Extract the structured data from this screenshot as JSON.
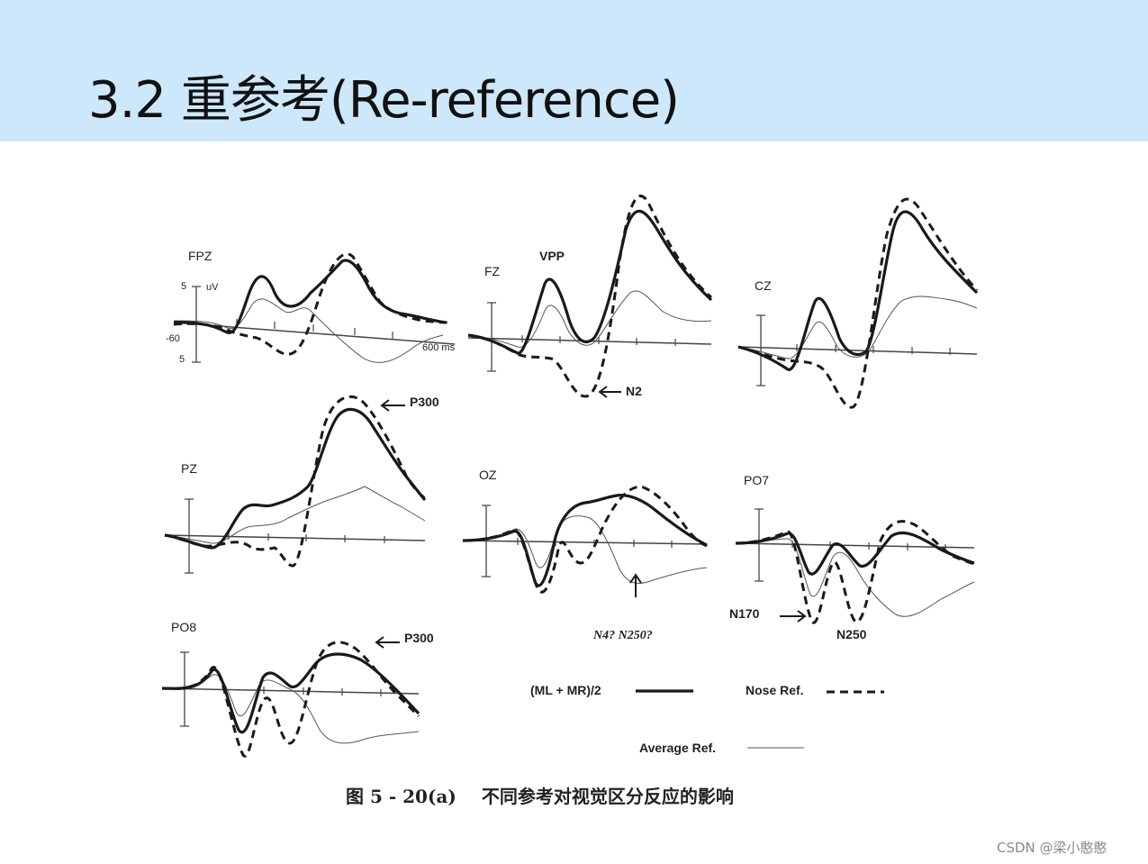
{
  "slide": {
    "title": "3.2 重参考(Re-reference)",
    "caption_fig": "图 5 - 20(a)",
    "caption_text": "不同参考对视觉区分反应的影响",
    "watermark": "CSDN @梁小憨憨"
  },
  "figure": {
    "channels": {
      "fpz": "FPZ",
      "fz": "FZ",
      "cz": "CZ",
      "pz": "PZ",
      "oz": "OZ",
      "po7": "PO7",
      "po8": "PO8"
    },
    "scale": {
      "amp_top": "5",
      "unit": "uV",
      "amp_bottom": "5",
      "time_start": "-60",
      "time_end": "600 ms"
    },
    "annotations": {
      "vpp": "VPP",
      "n2": "N2",
      "p300_pz": "P300",
      "p300_po8": "P300",
      "n4_n250": "N4? N250?",
      "n170": "N170",
      "n250": "N250"
    },
    "legend": {
      "mastoid": "(ML + MR)/2",
      "nose": "Nose Ref.",
      "average": "Average Ref."
    },
    "colors": {
      "trace": "#1a1a1a",
      "axis": "#444444",
      "average_trace": "#555555"
    }
  }
}
